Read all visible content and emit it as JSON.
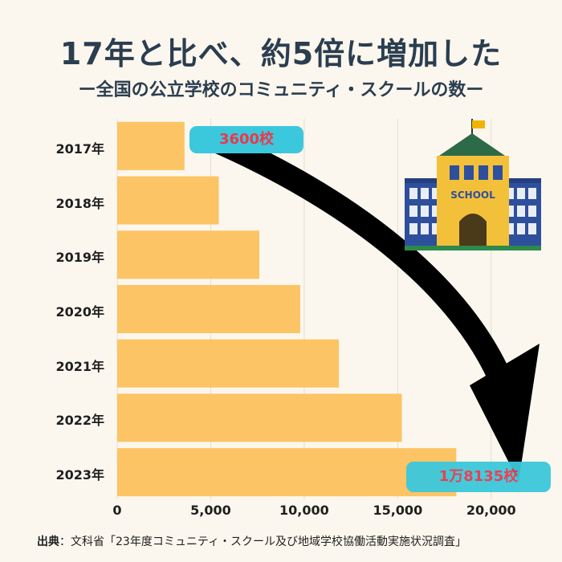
{
  "title": "17年と比べ、約5倍に増加した",
  "subtitle": "ー全国の公立学校のコミュニティ・スクールの数ー",
  "source": {
    "prefix": "出典",
    "text": "：文科省「23年度コミュニティ・スクール及び地域学校協働活動実施状況調査」"
  },
  "callouts": {
    "first": "3600校",
    "last": "1万8135校"
  },
  "school_sign": "SCHOOL",
  "icon": "school-building-icon",
  "arrow": "curved-down-arrow-icon",
  "colors": {
    "bar": "#fcc464",
    "title": "#2b3e50",
    "callout_bg": "#3cc8dc",
    "callout_text": "#e8394c",
    "background": "#fcf7ee"
  },
  "chart_data": {
    "type": "bar",
    "orientation": "horizontal",
    "categories": [
      "2017年",
      "2018年",
      "2019年",
      "2020年",
      "2021年",
      "2022年",
      "2023年"
    ],
    "values": [
      3600,
      5432,
      7601,
      9788,
      11856,
      15221,
      18135
    ],
    "xlim": [
      0,
      22500
    ],
    "x_ticks": [
      "0",
      "5,000",
      "10,000",
      "15,000",
      "20,000"
    ],
    "x_tick_values": [
      0,
      5000,
      10000,
      15000,
      20000
    ],
    "grid": true
  }
}
